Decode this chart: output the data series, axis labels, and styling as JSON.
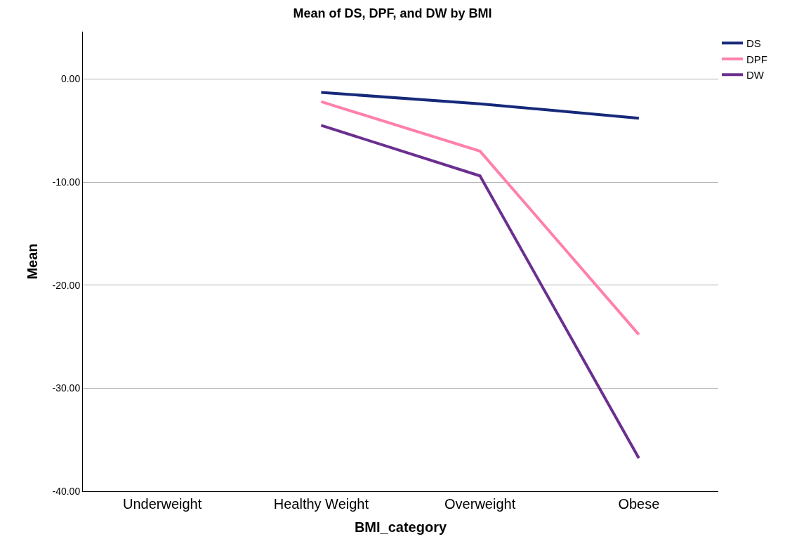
{
  "chart_data": {
    "type": "line",
    "title": "Mean of DS, DPF, and DW by BMI",
    "xlabel": "BMI_category",
    "ylabel": "Mean",
    "categories": [
      "Underweight",
      "Healthy Weight",
      "Overweight",
      "Obese"
    ],
    "series": [
      {
        "name": "DS",
        "color": "#16297a",
        "values": [
          null,
          -1.3,
          -2.4,
          -3.8
        ]
      },
      {
        "name": "DPF",
        "color": "#ff80ac",
        "values": [
          null,
          -2.2,
          -7.0,
          -24.8
        ]
      },
      {
        "name": "DW",
        "color": "#6b2f8f",
        "values": [
          null,
          -4.5,
          -9.4,
          -36.8
        ]
      }
    ],
    "ylim": [
      -40,
      4.6
    ],
    "yticks": [
      {
        "value": -40,
        "label": "-40.00"
      },
      {
        "value": -30,
        "label": "-30.00"
      },
      {
        "value": -20,
        "label": "-20.00"
      },
      {
        "value": -10,
        "label": "-10.00"
      },
      {
        "value": 0,
        "label": "0.00"
      }
    ],
    "grid": "y",
    "legend": "top right",
    "marker": "none",
    "line_style": "solid"
  }
}
